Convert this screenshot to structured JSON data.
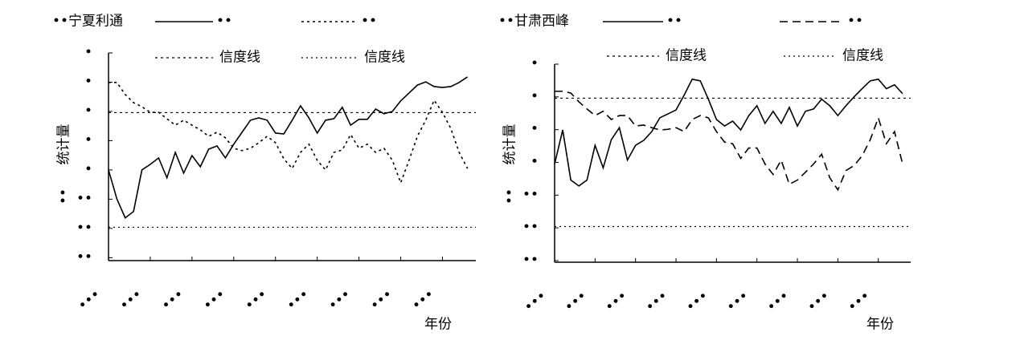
{
  "chart_data": [
    {
      "type": "line",
      "title": "••宁夏利通",
      "y_label": "统计量",
      "y_label_extra": "••",
      "x_label": "年份",
      "x": [
        1962,
        1963,
        1964,
        1965,
        1966,
        1967,
        1968,
        1969,
        1970,
        1971,
        1972,
        1973,
        1974,
        1975,
        1976,
        1977,
        1978,
        1979,
        1980,
        1981,
        1982,
        1983,
        1984,
        1985,
        1986,
        1987,
        1988,
        1989,
        1990,
        1991,
        1992,
        1993,
        1994,
        1995,
        1996,
        1997,
        1998,
        1999,
        2000,
        2001,
        2002,
        2003,
        2004,
        2005
      ],
      "series": [
        {
          "name": "••",
          "color": "#000000",
          "dash": "solid",
          "values": [
            0,
            -0.99,
            -1.64,
            -1.42,
            0,
            0.19,
            0.41,
            -0.27,
            0.6,
            -0.11,
            0.49,
            0.11,
            0.71,
            0.82,
            0.41,
            0.88,
            1.29,
            1.7,
            1.78,
            1.7,
            1.26,
            1.23,
            1.7,
            2.19,
            1.78,
            1.26,
            1.7,
            1.75,
            2.14,
            1.53,
            1.73,
            1.73,
            2.08,
            1.92,
            2.0,
            2.36,
            2.63,
            2.9,
            3.01,
            2.85,
            2.82,
            2.85,
            2.99,
            3.18
          ]
        },
        {
          "name": "••",
          "color": "#000000",
          "dash": "dotted",
          "values": [
            2.99,
            2.99,
            2.58,
            2.3,
            2.16,
            1.97,
            1.97,
            1.75,
            1.53,
            1.7,
            1.53,
            1.37,
            1.15,
            1.29,
            1.1,
            0.74,
            0.66,
            0.74,
            0.93,
            1.15,
            0.93,
            0.38,
            0.05,
            0.6,
            0.88,
            0.33,
            0,
            0.6,
            0.68,
            1.21,
            0.74,
            0.88,
            0.6,
            0.74,
            0.33,
            -0.44,
            0.33,
            1.15,
            1.7,
            2.38,
            1.97,
            1.42,
            0.6,
            0.05
          ]
        }
      ],
      "reference_lines": [
        {
          "name": "信度线",
          "value": 1.96,
          "dash": "dotted"
        },
        {
          "name": "信度线",
          "value": -1.96,
          "dash": "fine"
        }
      ],
      "xlim": [
        1962,
        2006
      ],
      "xticks": [
        {
          "value": 1962,
          "label": "•••"
        },
        {
          "value": 1967,
          "label": "•••"
        },
        {
          "value": 1972,
          "label": "•••"
        },
        {
          "value": 1977,
          "label": "•••"
        },
        {
          "value": 1982,
          "label": "•••"
        },
        {
          "value": 1987,
          "label": "•••"
        },
        {
          "value": 1992,
          "label": "•••"
        },
        {
          "value": 1997,
          "label": "•••"
        },
        {
          "value": 2002,
          "label": "•••"
        }
      ],
      "ylim": [
        -3.1,
        4
      ],
      "yticks": [
        {
          "value": 4,
          "label": "•"
        },
        {
          "value": 3,
          "label": "•"
        },
        {
          "value": 2,
          "label": "•"
        },
        {
          "value": 1,
          "label": "•"
        },
        {
          "value": 0,
          "label": "•"
        },
        {
          "value": -1,
          "label": "••"
        },
        {
          "value": -2,
          "label": "••"
        },
        {
          "value": -3,
          "label": "••"
        }
      ]
    },
    {
      "type": "line",
      "title": "••甘肃西峰",
      "y_label": "统计量",
      "y_label_extra": "••",
      "x_label": "年份",
      "x": [
        1962,
        1963,
        1964,
        1965,
        1966,
        1967,
        1968,
        1969,
        1970,
        1971,
        1972,
        1973,
        1974,
        1975,
        1976,
        1977,
        1978,
        1979,
        1980,
        1981,
        1982,
        1983,
        1984,
        1985,
        1986,
        1987,
        1988,
        1989,
        1990,
        1991,
        1992,
        1993,
        1994,
        1995,
        1996,
        1997,
        1998,
        1999,
        2000,
        2001,
        2002,
        2003,
        2004,
        2005
      ],
      "series": [
        {
          "name": "••",
          "color": "#000000",
          "dash": "solid",
          "values": [
            -0.05,
            0.99,
            -0.54,
            -0.72,
            -0.54,
            0.52,
            -0.17,
            0.69,
            1.06,
            0.07,
            0.52,
            0.67,
            0.94,
            1.36,
            1.48,
            1.6,
            2.05,
            2.54,
            2.49,
            1.93,
            1.31,
            1.11,
            1.26,
            0.99,
            1.43,
            1.73,
            1.19,
            1.56,
            1.19,
            1.68,
            1.11,
            1.56,
            1.63,
            1.93,
            1.73,
            1.43,
            1.73,
            2.0,
            2.25,
            2.49,
            2.54,
            2.25,
            2.37,
            2.1
          ]
        },
        {
          "name": "••",
          "color": "#000000",
          "dash": "dashed",
          "values": [
            2.17,
            2.17,
            2.12,
            1.85,
            1.63,
            1.43,
            1.56,
            1.31,
            1.43,
            1.43,
            1.11,
            1.14,
            1.06,
            0.99,
            1.01,
            1.06,
            0.94,
            1.31,
            1.43,
            1.36,
            0.94,
            0.62,
            0.57,
            0.12,
            0.44,
            0.44,
            -0.05,
            -0.37,
            0.07,
            -0.67,
            -0.54,
            -0.3,
            -0.05,
            0.25,
            -0.47,
            -0.84,
            -0.25,
            -0.1,
            0.2,
            0.69,
            1.36,
            0.57,
            0.94,
            -0.05
          ]
        }
      ],
      "reference_lines": [
        {
          "name": "信度线",
          "value": 1.96,
          "dash": "dotted"
        },
        {
          "name": "信度线",
          "value": -1.96,
          "dash": "fine"
        }
      ],
      "xlim": [
        1962,
        2006
      ],
      "xticks": [
        {
          "value": 1962,
          "label": "•••"
        },
        {
          "value": 1967,
          "label": "•••"
        },
        {
          "value": 1972,
          "label": "•••"
        },
        {
          "value": 1977,
          "label": "•••"
        },
        {
          "value": 1982,
          "label": "•••"
        },
        {
          "value": 1987,
          "label": "•••"
        },
        {
          "value": 1992,
          "label": "•••"
        },
        {
          "value": 1997,
          "label": "•••"
        },
        {
          "value": 2002,
          "label": "•••"
        }
      ],
      "ylim": [
        -3.05,
        3
      ],
      "yticks": [
        {
          "value": 3,
          "label": "•"
        },
        {
          "value": 2,
          "label": "•"
        },
        {
          "value": 1,
          "label": "•"
        },
        {
          "value": 0,
          "label": "•"
        },
        {
          "value": -1,
          "label": "••"
        },
        {
          "value": -2,
          "label": "••"
        },
        {
          "value": -3,
          "label": "••"
        }
      ]
    }
  ]
}
